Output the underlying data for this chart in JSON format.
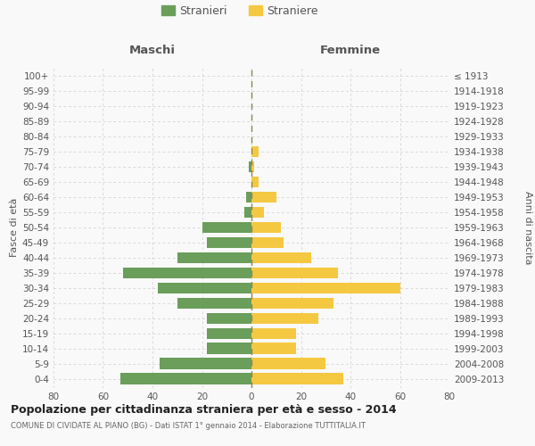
{
  "age_groups": [
    "0-4",
    "5-9",
    "10-14",
    "15-19",
    "20-24",
    "25-29",
    "30-34",
    "35-39",
    "40-44",
    "45-49",
    "50-54",
    "55-59",
    "60-64",
    "65-69",
    "70-74",
    "75-79",
    "80-84",
    "85-89",
    "90-94",
    "95-99",
    "100+"
  ],
  "birth_years": [
    "2009-2013",
    "2004-2008",
    "1999-2003",
    "1994-1998",
    "1989-1993",
    "1984-1988",
    "1979-1983",
    "1974-1978",
    "1969-1973",
    "1964-1968",
    "1959-1963",
    "1954-1958",
    "1949-1953",
    "1944-1948",
    "1939-1943",
    "1934-1938",
    "1929-1933",
    "1924-1928",
    "1919-1923",
    "1914-1918",
    "≤ 1913"
  ],
  "maschi": [
    53,
    37,
    18,
    18,
    18,
    30,
    38,
    52,
    30,
    18,
    20,
    3,
    2,
    0,
    1,
    0,
    0,
    0,
    0,
    0,
    0
  ],
  "femmine": [
    37,
    30,
    18,
    18,
    27,
    33,
    60,
    35,
    24,
    13,
    12,
    5,
    10,
    3,
    1,
    3,
    0,
    0,
    0,
    0,
    0
  ],
  "maschi_color": "#6a9e5a",
  "femmine_color": "#f5c842",
  "background_color": "#f9f9f9",
  "grid_color": "#cccccc",
  "title": "Popolazione per cittadinanza straniera per età e sesso - 2014",
  "subtitle": "COMUNE DI CIVIDATE AL PIANO (BG) - Dati ISTAT 1° gennaio 2014 - Elaborazione TUTTITALIA.IT",
  "xlabel_left": "Maschi",
  "xlabel_right": "Femmine",
  "ylabel_left": "Fasce di età",
  "ylabel_right": "Anni di nascita",
  "xlim": 80,
  "legend_maschi": "Stranieri",
  "legend_femmine": "Straniere"
}
